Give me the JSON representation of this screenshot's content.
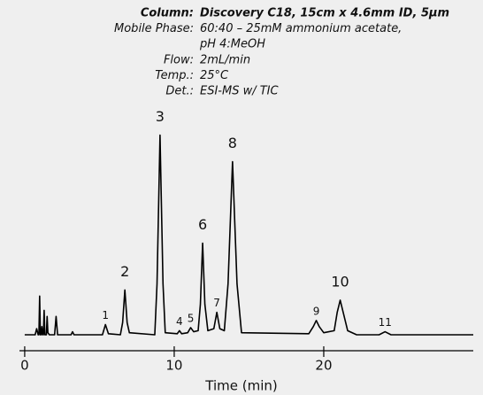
{
  "chart_data": {
    "type": "line",
    "conditions": [
      {
        "key": "Column:",
        "value": "Discovery C18, 15cm x 4.6mm ID, 5µm"
      },
      {
        "key": "Mobile Phase:",
        "value": "60:40 – 25mM ammonium acetate,"
      },
      {
        "value": "pH 4:MeOH"
      },
      {
        "key": "Flow:",
        "value": "2mL/min"
      },
      {
        "key": "Temp.:",
        "value": "25°C"
      },
      {
        "key": "Det.:",
        "value": "ESI-MS w/ TIC"
      }
    ],
    "x_label": "Time (min)",
    "x": [
      0,
      0.7,
      0.8,
      0.9,
      0.95,
      1.0,
      1.05,
      1.1,
      1.15,
      1.2,
      1.25,
      1.3,
      1.35,
      1.45,
      1.5,
      1.55,
      1.65,
      2.0,
      2.1,
      2.2,
      3.1,
      3.2,
      3.3,
      5.2,
      5.4,
      5.6,
      6.4,
      6.55,
      6.7,
      6.85,
      7.0,
      8.7,
      8.85,
      9.05,
      9.25,
      9.4,
      10.2,
      10.35,
      10.5,
      10.9,
      11.1,
      11.3,
      11.6,
      11.75,
      11.9,
      12.05,
      12.25,
      12.65,
      12.85,
      13.05,
      13.35,
      13.6,
      13.9,
      14.2,
      14.5,
      19.0,
      19.3,
      19.5,
      19.7,
      20.0,
      20.7,
      20.9,
      21.1,
      21.3,
      21.6,
      22.2,
      23.7,
      24.1,
      24.5,
      30
    ],
    "values": [
      0,
      0,
      3,
      0,
      0,
      19,
      0,
      0,
      4,
      0,
      0,
      12,
      0,
      0,
      9,
      1,
      0,
      0,
      9,
      0,
      0,
      1.5,
      0,
      0,
      5,
      0.5,
      0,
      6,
      22,
      6,
      1,
      0,
      25,
      98,
      25,
      1,
      0.5,
      2,
      0.5,
      1,
      3.5,
      1.5,
      2,
      15,
      45,
      15,
      2,
      3,
      11,
      3,
      2,
      25,
      85,
      25,
      1,
      0.5,
      4,
      7,
      4,
      1,
      2,
      11,
      17,
      11,
      2,
      0,
      0,
      1.5,
      0,
      0
    ],
    "color": "#000000",
    "peak_labels": [
      {
        "label": "1",
        "x": 5.4
      },
      {
        "label": "2",
        "x": 6.7
      },
      {
        "label": "3",
        "x": 9.05
      },
      {
        "label": "4",
        "x": 10.35
      },
      {
        "label": "5",
        "x": 11.1
      },
      {
        "label": "6",
        "x": 11.9
      },
      {
        "label": "7",
        "x": 12.85
      },
      {
        "label": "8",
        "x": 13.9
      },
      {
        "label": "9",
        "x": 19.5
      },
      {
        "label": "10",
        "x": 21.1
      },
      {
        "label": "11",
        "x": 24.1
      }
    ],
    "xlim": [
      -0.35,
      30
    ],
    "xticks": [
      0,
      10,
      20
    ],
    "ylim": [
      0,
      100
    ]
  }
}
